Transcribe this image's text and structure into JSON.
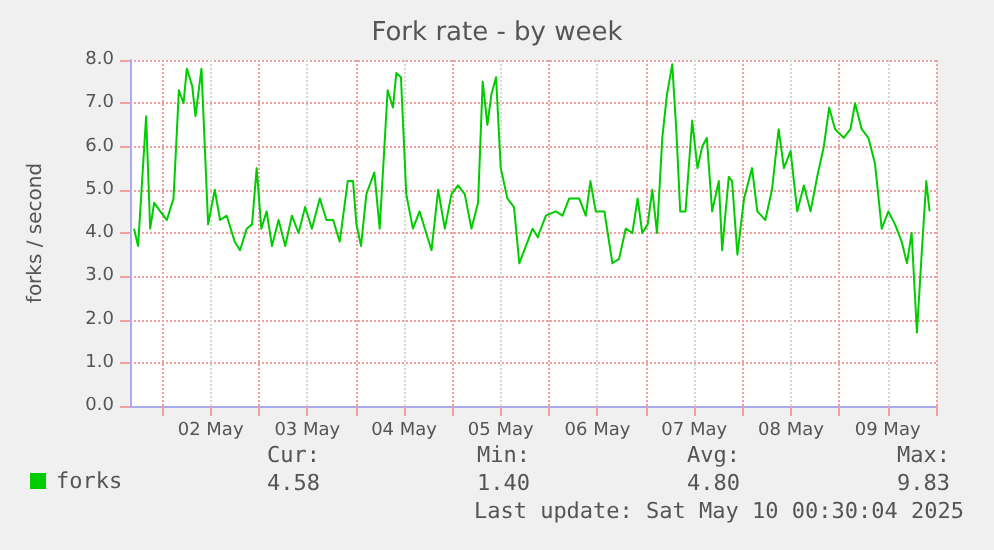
{
  "chart_data": {
    "type": "line",
    "title": "Fork rate - by week",
    "ylabel": "forks / second",
    "x": [
      "2025-05-01T17:00",
      "2025-05-01T18:00",
      "2025-05-01T20:00",
      "2025-05-01T21:00",
      "2025-05-01T22:00",
      "2025-05-01T23:30",
      "2025-05-02T01:09",
      "2025-05-02T02:48",
      "2025-05-02T04:08",
      "2025-05-02T05:17",
      "2025-05-02T06:06",
      "2025-05-02T07:26",
      "2025-05-02T08:15",
      "2025-05-02T09:44",
      "2025-05-02T11:23",
      "2025-05-02T13:02",
      "2025-05-02T14:21",
      "2025-05-02T16:00",
      "2025-05-02T17:59",
      "2025-05-02T19:18",
      "2025-05-02T20:57",
      "2025-05-02T22:17",
      "2025-05-02T23:26",
      "2025-05-03T00:35",
      "2025-05-03T01:54",
      "2025-05-03T03:14",
      "2025-05-03T04:52",
      "2025-05-03T06:31",
      "2025-05-03T08:10",
      "2025-05-03T09:49",
      "2025-05-03T11:28",
      "2025-05-03T13:08",
      "2025-05-03T15:06",
      "2025-05-03T16:45",
      "2025-05-03T18:24",
      "2025-05-03T20:03",
      "2025-05-03T22:02",
      "2025-05-03T23:21",
      "2025-05-04T00:11",
      "2025-05-04T01:20",
      "2025-05-04T02:39",
      "2025-05-04T04:38",
      "2025-05-04T05:57",
      "2025-05-04T07:56",
      "2025-05-04T09:15",
      "2025-05-04T10:05",
      "2025-05-04T11:14",
      "2025-05-04T12:33",
      "2025-05-04T14:12",
      "2025-05-04T15:51",
      "2025-05-04T17:30",
      "2025-05-04T18:49",
      "2025-05-04T20:28",
      "2025-05-04T22:07",
      "2025-05-04T23:46",
      "2025-05-05T01:25",
      "2025-05-05T03:04",
      "2025-05-05T04:43",
      "2025-05-05T06:22",
      "2025-05-05T07:31",
      "2025-05-05T08:41",
      "2025-05-05T09:40",
      "2025-05-05T10:50",
      "2025-05-05T12:00",
      "2025-05-05T13:38",
      "2025-05-05T15:17",
      "2025-05-05T16:36",
      "2025-05-05T18:15",
      "2025-05-05T19:54",
      "2025-05-05T21:13",
      "2025-05-05T21:33",
      "2025-05-05T23:12",
      "2025-05-06T01:40",
      "2025-05-06T03:20",
      "2025-05-06T04:59",
      "2025-05-06T07:27",
      "2025-05-06T09:06",
      "2025-05-06T10:15",
      "2025-05-06T11:34",
      "2025-05-06T13:43",
      "2025-05-06T15:42",
      "2025-05-06T17:21",
      "2025-05-06T19:00",
      "2025-05-06T20:39",
      "2025-05-06T21:58",
      "2025-05-06T23:07",
      "2025-05-07T00:27",
      "2025-05-07T01:36",
      "2025-05-07T02:46",
      "2025-05-07T04:05",
      "2025-05-07T05:14",
      "2025-05-07T06:33",
      "2025-05-07T07:33",
      "2025-05-07T08:32",
      "2025-05-07T09:51",
      "2025-05-07T11:30",
      "2025-05-07T12:49",
      "2025-05-07T13:59",
      "2025-05-07T15:08",
      "2025-05-07T16:27",
      "2025-05-07T18:06",
      "2025-05-07T18:56",
      "2025-05-07T20:35",
      "2025-05-07T21:24",
      "2025-05-07T22:43",
      "2025-05-08T00:22",
      "2025-05-08T02:21",
      "2025-05-08T03:40",
      "2025-05-08T05:39",
      "2025-05-08T07:18",
      "2025-05-08T08:57",
      "2025-05-08T10:16",
      "2025-05-08T11:55",
      "2025-05-08T13:34",
      "2025-05-08T15:13",
      "2025-05-08T16:52",
      "2025-05-08T18:31",
      "2025-05-08T20:10",
      "2025-05-08T21:29",
      "2025-05-08T22:58",
      "2025-05-09T01:07",
      "2025-05-09T02:46",
      "2025-05-09T03:55",
      "2025-05-09T05:34",
      "2025-05-09T07:13",
      "2025-05-09T08:52",
      "2025-05-09T10:32",
      "2025-05-09T12:11",
      "2025-05-09T13:50",
      "2025-05-09T15:29",
      "2025-05-09T16:48",
      "2025-05-09T17:57",
      "2025-05-09T19:16",
      "2025-05-09T20:26",
      "2025-05-09T21:35",
      "2025-05-09T22:25"
    ],
    "series": [
      {
        "name": "forks",
        "color": "#00cc00",
        "values": [
          4.1,
          3.7,
          6.7,
          4.1,
          4.7,
          4.5,
          4.3,
          4.8,
          7.3,
          7.0,
          7.8,
          7.4,
          6.7,
          7.8,
          4.2,
          5.0,
          4.3,
          4.4,
          3.8,
          3.6,
          4.1,
          4.2,
          5.5,
          4.1,
          4.5,
          3.7,
          4.3,
          3.7,
          4.4,
          4.0,
          4.6,
          4.1,
          4.8,
          4.3,
          4.3,
          3.8,
          5.2,
          5.2,
          4.2,
          3.7,
          4.9,
          5.4,
          4.1,
          7.3,
          6.9,
          7.7,
          7.6,
          4.9,
          4.1,
          4.5,
          4.0,
          3.6,
          5.0,
          4.1,
          4.9,
          5.1,
          4.9,
          4.1,
          4.7,
          7.5,
          6.5,
          7.2,
          7.6,
          5.5,
          4.8,
          4.6,
          3.3,
          3.7,
          4.1,
          3.9,
          4.0,
          4.4,
          4.5,
          4.4,
          4.8,
          4.8,
          4.4,
          5.2,
          4.5,
          4.5,
          3.3,
          3.4,
          4.1,
          4.0,
          4.8,
          4.0,
          4.2,
          5.0,
          4.0,
          6.2,
          7.2,
          7.9,
          6.4,
          4.5,
          4.5,
          6.6,
          5.5,
          6.0,
          6.2,
          4.5,
          5.2,
          3.6,
          5.3,
          5.2,
          3.5,
          4.8,
          5.5,
          4.5,
          4.3,
          5.0,
          6.4,
          5.5,
          5.9,
          4.5,
          5.1,
          4.5,
          5.3,
          6.0,
          6.9,
          6.4,
          6.2,
          6.4,
          7.0,
          6.4,
          6.2,
          5.6,
          4.1,
          4.5,
          4.2,
          3.8,
          3.3,
          4.0,
          1.7,
          3.5,
          5.2,
          4.5
        ]
      }
    ],
    "xlim": [
      "2025-05-01T16:00",
      "2025-05-10T00:00"
    ],
    "xticks": [
      {
        "value": "2025-05-02T00:00",
        "label": null
      },
      {
        "value": "2025-05-02T12:00",
        "label": "02 May"
      },
      {
        "value": "2025-05-03T00:00",
        "label": null
      },
      {
        "value": "2025-05-03T12:00",
        "label": "03 May"
      },
      {
        "value": "2025-05-04T00:00",
        "label": null
      },
      {
        "value": "2025-05-04T12:00",
        "label": "04 May"
      },
      {
        "value": "2025-05-05T00:00",
        "label": null
      },
      {
        "value": "2025-05-05T12:00",
        "label": "05 May"
      },
      {
        "value": "2025-05-06T00:00",
        "label": null
      },
      {
        "value": "2025-05-06T12:00",
        "label": "06 May"
      },
      {
        "value": "2025-05-07T00:00",
        "label": null
      },
      {
        "value": "2025-05-07T12:00",
        "label": "07 May"
      },
      {
        "value": "2025-05-08T00:00",
        "label": null
      },
      {
        "value": "2025-05-08T12:00",
        "label": "08 May"
      },
      {
        "value": "2025-05-09T00:00",
        "label": null
      },
      {
        "value": "2025-05-09T12:00",
        "label": "09 May"
      },
      {
        "value": "2025-05-10T00:00",
        "label": null
      }
    ],
    "ylim": [
      0,
      8
    ],
    "yticks": [
      {
        "value": 0,
        "label": "0.0"
      },
      {
        "value": 1,
        "label": "1.0"
      },
      {
        "value": 2,
        "label": "2.0"
      },
      {
        "value": 3,
        "label": "3.0"
      },
      {
        "value": 4,
        "label": "4.0"
      },
      {
        "value": 5,
        "label": "5.0"
      },
      {
        "value": 6,
        "label": "6.0"
      },
      {
        "value": 7,
        "label": "7.0"
      },
      {
        "value": 8,
        "label": "8.0"
      }
    ],
    "grid": true,
    "legend": "bottom left",
    "marker": "none",
    "line_style": "solid",
    "annotations": [
      "Cur:",
      "4.58",
      "Min:",
      "1.40",
      "Avg:",
      "4.80",
      "Max:",
      "9.83",
      "Last update: Sat May 10 00:30:04 2025"
    ]
  }
}
